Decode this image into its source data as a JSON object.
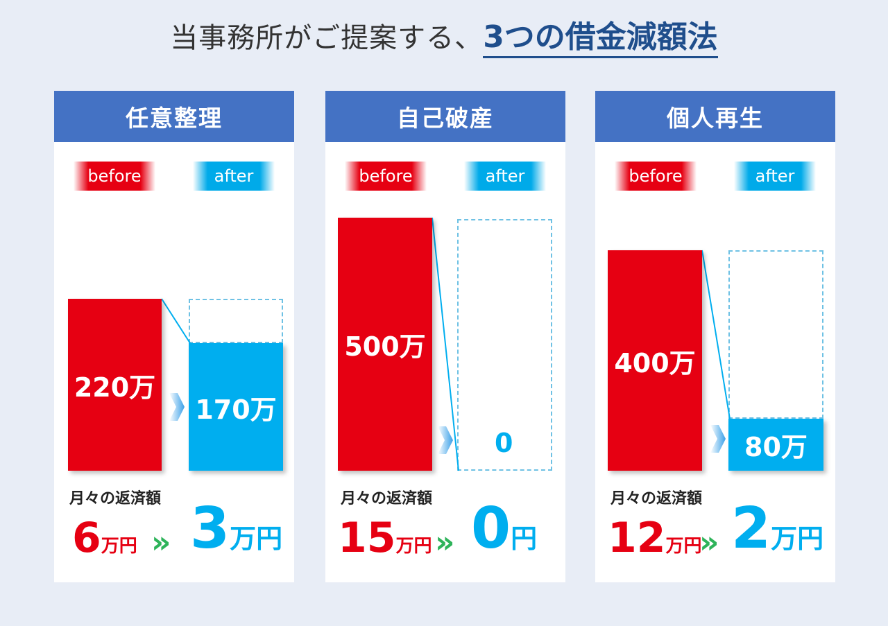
{
  "headline": {
    "prefix": "当事務所がご提案する、",
    "emphasis": "3つの借金減額法"
  },
  "tags": {
    "before": "before",
    "after": "after"
  },
  "monthly_label": "月々の返済額",
  "arrow": "»",
  "cards": [
    {
      "title": "任意整理",
      "before_bar": "220万",
      "after_bar": "170万",
      "from_num": "6",
      "from_unit": "万円",
      "to_num": "3",
      "to_unit": "万円"
    },
    {
      "title": "自己破産",
      "before_bar": "500万",
      "after_bar": "0",
      "from_num": "15",
      "from_unit": "万円",
      "to_num": "0",
      "to_unit": "円"
    },
    {
      "title": "個人再生",
      "before_bar": "400万",
      "after_bar": "80万",
      "from_num": "12",
      "from_unit": "万円",
      "to_num": "2",
      "to_unit": "万円"
    }
  ],
  "colors": {
    "header": "#4472c4",
    "before": "#e60012",
    "after": "#00aeef",
    "arrow": "#2eb35a"
  }
}
